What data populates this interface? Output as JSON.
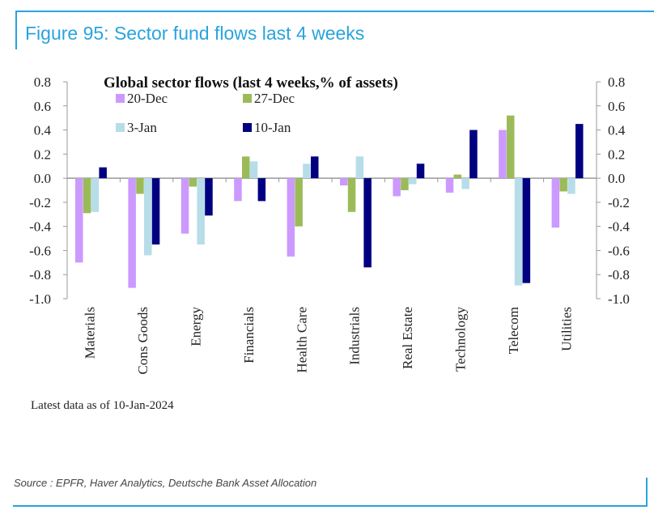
{
  "figure": {
    "title": "Figure 95: Sector fund flows last 4 weeks",
    "note": "Latest data as of 10-Jan-2024",
    "source": "Source : EPFR, Haver Analytics, Deutsche Bank Asset Allocation",
    "accent_color": "#29a3df"
  },
  "chart_data": {
    "type": "bar",
    "title": "Global sector flows (last 4 weeks,% of assets)",
    "xlabel": "",
    "ylabel": "",
    "ylim": [
      -1.0,
      0.8
    ],
    "yticks": [
      "0.8",
      "0.6",
      "0.4",
      "0.2",
      "0.0",
      "-0.2",
      "-0.4",
      "-0.6",
      "-0.8",
      "-1.0"
    ],
    "ytick_values": [
      0.8,
      0.6,
      0.4,
      0.2,
      0.0,
      -0.2,
      -0.4,
      -0.6,
      -0.8,
      -1.0
    ],
    "secondary_axis": "right (mirrors left)",
    "grid": false,
    "legend_position": "top-left",
    "categories": [
      "Materials",
      "Cons Goods",
      "Energy",
      "Financials",
      "Health Care",
      "Industrials",
      "Real Estate",
      "Technology",
      "Telecom",
      "Utilities"
    ],
    "series": [
      {
        "name": "20-Dec",
        "color": "#cc99ff",
        "values": [
          -0.7,
          -0.91,
          -0.46,
          -0.19,
          -0.65,
          -0.06,
          -0.15,
          -0.12,
          0.4,
          -0.41
        ]
      },
      {
        "name": "27-Dec",
        "color": "#9bbb59",
        "values": [
          -0.29,
          -0.13,
          -0.07,
          0.18,
          -0.4,
          -0.28,
          -0.1,
          0.03,
          0.52,
          -0.11
        ]
      },
      {
        "name": "3-Jan",
        "color": "#b7dde8",
        "values": [
          -0.28,
          -0.64,
          -0.55,
          0.14,
          0.12,
          0.18,
          -0.05,
          -0.09,
          -0.89,
          -0.13
        ]
      },
      {
        "name": "10-Jan",
        "color": "#000080",
        "values": [
          0.09,
          -0.55,
          -0.31,
          -0.19,
          0.18,
          -0.74,
          0.12,
          0.4,
          -0.87,
          0.45
        ]
      }
    ]
  }
}
